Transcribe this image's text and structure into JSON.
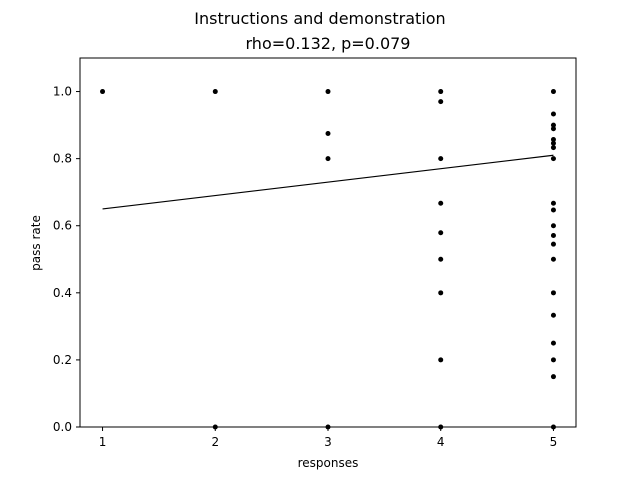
{
  "chart_data": {
    "type": "scatter",
    "title": "Instructions and demonstration",
    "subtitle": "rho=0.132, p=0.079",
    "xlabel": "responses",
    "ylabel": "pass rate",
    "xlim": [
      0.8,
      5.2
    ],
    "ylim": [
      0.0,
      1.1
    ],
    "xticks": [
      "1",
      "2",
      "3",
      "4",
      "5"
    ],
    "yticks": [
      "0.0",
      "0.2",
      "0.4",
      "0.6",
      "0.8",
      "1.0"
    ],
    "grid": false,
    "point_color": "#000000",
    "points": [
      {
        "x": 1,
        "y": 1.0
      },
      {
        "x": 2,
        "y": 1.0
      },
      {
        "x": 2,
        "y": 0.0
      },
      {
        "x": 3,
        "y": 1.0
      },
      {
        "x": 3,
        "y": 0.875
      },
      {
        "x": 3,
        "y": 0.8
      },
      {
        "x": 3,
        "y": 0.0
      },
      {
        "x": 4,
        "y": 1.0
      },
      {
        "x": 4,
        "y": 0.97
      },
      {
        "x": 4,
        "y": 0.8
      },
      {
        "x": 4,
        "y": 0.667
      },
      {
        "x": 4,
        "y": 0.579
      },
      {
        "x": 4,
        "y": 0.5
      },
      {
        "x": 4,
        "y": 0.4
      },
      {
        "x": 4,
        "y": 0.2
      },
      {
        "x": 4,
        "y": 0.0
      },
      {
        "x": 5,
        "y": 1.0
      },
      {
        "x": 5,
        "y": 0.933
      },
      {
        "x": 5,
        "y": 0.9
      },
      {
        "x": 5,
        "y": 0.889
      },
      {
        "x": 5,
        "y": 0.857
      },
      {
        "x": 5,
        "y": 0.846
      },
      {
        "x": 5,
        "y": 0.833
      },
      {
        "x": 5,
        "y": 0.8
      },
      {
        "x": 5,
        "y": 0.667
      },
      {
        "x": 5,
        "y": 0.647
      },
      {
        "x": 5,
        "y": 0.6
      },
      {
        "x": 5,
        "y": 0.571
      },
      {
        "x": 5,
        "y": 0.545
      },
      {
        "x": 5,
        "y": 0.5
      },
      {
        "x": 5,
        "y": 0.4
      },
      {
        "x": 5,
        "y": 0.333
      },
      {
        "x": 5,
        "y": 0.25
      },
      {
        "x": 5,
        "y": 0.2
      },
      {
        "x": 5,
        "y": 0.15
      },
      {
        "x": 5,
        "y": 0.0
      }
    ],
    "fit_line": {
      "x": [
        1,
        5
      ],
      "y": [
        0.65,
        0.81
      ]
    }
  }
}
